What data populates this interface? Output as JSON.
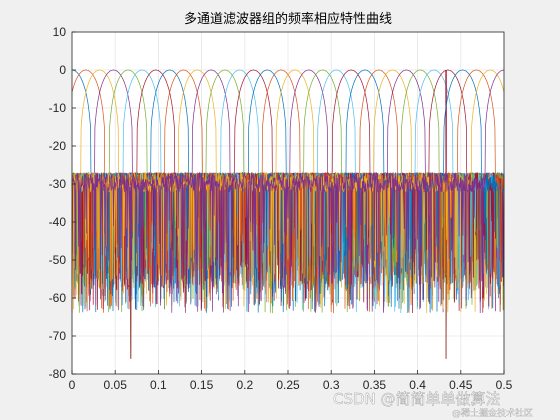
{
  "chart_data": {
    "type": "line",
    "title": "多通道滤波器组的频率相应特性曲线",
    "xlabel": "",
    "ylabel": "",
    "xlim": [
      0,
      0.5
    ],
    "ylim": [
      -80,
      10
    ],
    "x_ticks": [
      0,
      0.05,
      0.1,
      0.15,
      0.2,
      0.25,
      0.3,
      0.35,
      0.4,
      0.45,
      0.5
    ],
    "x_tick_labels": [
      "0",
      "0.05",
      "0.1",
      "0.15",
      "0.2",
      "0.25",
      "0.3",
      "0.35",
      "0.4",
      "0.45",
      "0.5"
    ],
    "y_ticks": [
      10,
      0,
      -10,
      -20,
      -30,
      -40,
      -50,
      -60,
      -70,
      -80
    ],
    "y_tick_labels": [
      "10",
      "0",
      "-10",
      "-20",
      "-30",
      "-40",
      "-50",
      "-60",
      "-70",
      "-80"
    ],
    "grid": true,
    "channels": 32,
    "passband_db": 0,
    "sidelobe_level_db": -30,
    "channel_centers": [
      0.0,
      0.016,
      0.032,
      0.048,
      0.065,
      0.081,
      0.097,
      0.113,
      0.129,
      0.145,
      0.161,
      0.177,
      0.194,
      0.21,
      0.226,
      0.242,
      0.258,
      0.274,
      0.29,
      0.306,
      0.323,
      0.339,
      0.355,
      0.371,
      0.387,
      0.403,
      0.419,
      0.435,
      0.452,
      0.468,
      0.484,
      0.5
    ],
    "deep_nulls": [
      {
        "x": 0.068,
        "y": -76
      },
      {
        "x": 0.433,
        "y": -76
      }
    ],
    "series_colors": [
      "#0072BD",
      "#D95319",
      "#EDB120",
      "#7E2F8E",
      "#77AC30",
      "#4DBEEE",
      "#A2142F"
    ]
  },
  "watermark": {
    "main": "CSDN @简简单单做算法",
    "sub": "@稀土掘金技术社区"
  }
}
